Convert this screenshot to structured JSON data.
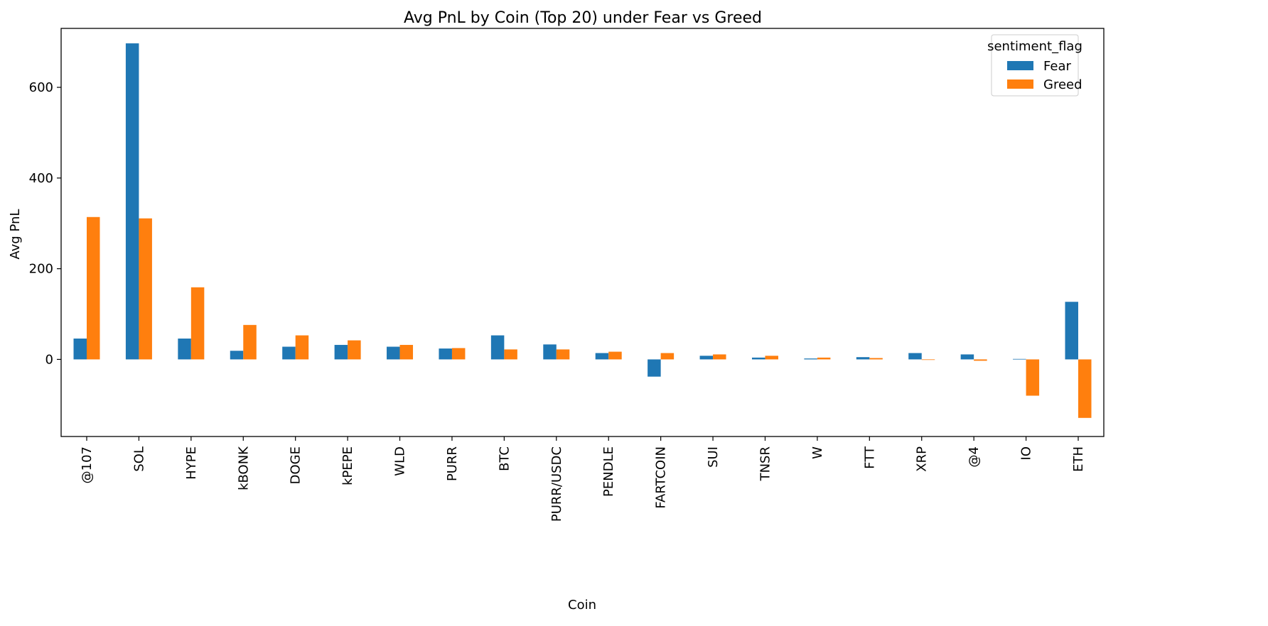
{
  "chart_data": {
    "type": "bar",
    "title": "Avg PnL by Coin (Top 20) under Fear vs Greed",
    "xlabel": "Coin",
    "ylabel": "Avg PnL",
    "ylim": [
      -170,
      730
    ],
    "yticks": [
      0,
      200,
      400,
      600
    ],
    "grid": false,
    "legend": {
      "title": "sentiment_flag",
      "placement": "top-right"
    },
    "categories": [
      "@107",
      "SOL",
      "HYPE",
      "kBONK",
      "DOGE",
      "kPEPE",
      "WLD",
      "PURR",
      "BTC",
      "PURR/USDC",
      "PENDLE",
      "FARTCOIN",
      "SUI",
      "TNSR",
      "W",
      "FTT",
      "XRP",
      "@4",
      "IO",
      "ETH"
    ],
    "series": [
      {
        "name": "Fear",
        "color": "#1f77b4",
        "values": [
          46,
          697,
          46,
          19,
          28,
          32,
          28,
          24,
          53,
          33,
          14,
          -38,
          8,
          4,
          2,
          5,
          14,
          11,
          1,
          127
        ]
      },
      {
        "name": "Greed",
        "color": "#ff7f0e",
        "values": [
          314,
          311,
          159,
          76,
          53,
          42,
          32,
          25,
          22,
          22,
          17,
          14,
          11,
          8,
          4,
          3,
          0,
          -3,
          -80,
          -129
        ]
      }
    ]
  }
}
